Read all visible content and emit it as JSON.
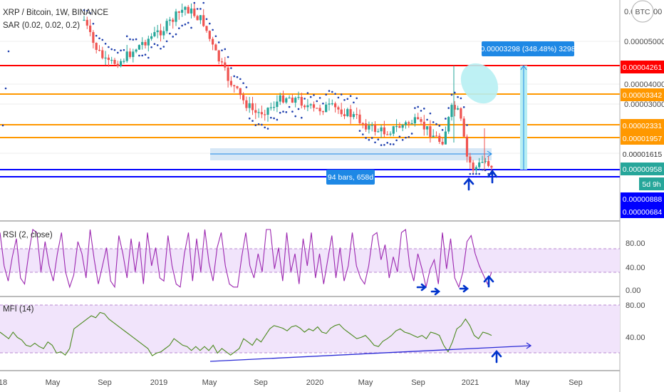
{
  "header": {
    "title": "XRP / Bitcoin, 1W, BINANCE",
    "indicator": "SAR (0.02, 0.02, 0.2)",
    "currency_button": "BTC"
  },
  "chart_data": [
    {
      "type": "candlestick",
      "title": "XRP / Bitcoin, 1W, BINANCE",
      "indicator": "SAR (0.02, 0.02, 0.2)",
      "ylim": [
        6.8e-06,
        6.5e-06
      ],
      "y_ticks": [
        "0.00005000",
        "0.00004000",
        "0.00003000",
        "0.00001615"
      ],
      "price_lines": [
        {
          "value": "0.00004261",
          "color": "#ff0000"
        },
        {
          "value": "0.00003342",
          "color": "#ff9800"
        },
        {
          "value": "0.00002331",
          "color": "#ff9800"
        },
        {
          "value": "0.00001957",
          "color": "#ff9800"
        },
        {
          "value": "0.00000958",
          "color": "#0000ff"
        }
      ],
      "price_tags": [
        {
          "text": "0.00004261",
          "color": "#ff0000"
        },
        {
          "text": "0.00003342",
          "color": "#ff9800"
        },
        {
          "text": "0.00002331",
          "color": "#ff9800"
        },
        {
          "text": "0.00001957",
          "color": "#ff9800"
        },
        {
          "text": "0.00001615",
          "color": "#ffffff"
        },
        {
          "text": "0.00000958",
          "color": "#26a69a"
        },
        {
          "text": "5d 9h",
          "color": "#26a69a"
        },
        {
          "text": "0.00000888",
          "color": "#0000ff"
        },
        {
          "text": "0.00000684",
          "color": "#0000ff"
        }
      ],
      "annotations": [
        {
          "text": "0.00003298 (348.48%) 3298"
        },
        {
          "text": "94 bars, 658d"
        }
      ]
    },
    {
      "type": "line",
      "title": "RSI (2, close)",
      "ylim": [
        0,
        100
      ],
      "y_ticks": [
        "80.00",
        "40.00",
        "0.00"
      ],
      "series": [
        {
          "name": "RSI (2, close)",
          "color": "#9c27b0",
          "values": [
            95,
            40,
            15,
            55,
            85,
            20,
            10,
            60,
            100,
            95,
            30,
            80,
            40,
            15,
            60,
            95,
            30,
            5,
            25,
            80,
            60,
            20,
            100,
            50,
            10,
            40,
            70,
            15,
            5,
            90,
            60,
            20,
            85,
            30,
            80,
            10,
            95,
            40,
            70,
            20,
            15,
            90,
            40,
            10,
            5,
            60,
            95,
            15,
            85,
            30,
            100,
            45,
            15,
            70,
            95,
            40,
            10,
            5,
            5,
            55,
            95,
            40,
            20,
            60,
            30,
            100,
            100,
            35,
            70,
            15,
            95,
            30,
            60,
            10,
            85,
            40,
            95,
            20,
            60,
            10,
            50,
            90,
            20,
            70,
            15,
            40,
            95,
            40,
            20,
            10,
            40,
            90,
            95,
            50,
            75,
            20,
            55,
            30,
            95,
            100,
            40,
            15,
            60,
            35,
            5,
            35,
            50,
            10,
            95,
            35,
            85,
            20,
            5,
            30,
            80,
            90,
            60,
            40,
            25,
            10,
            30
          ]
        }
      ]
    },
    {
      "type": "line",
      "title": "MFI (14)",
      "ylim": [
        0,
        100
      ],
      "y_ticks": [
        "80.00",
        "40.00"
      ],
      "series": [
        {
          "name": "MFI (14)",
          "color": "#4c8a1f",
          "values": [
            50,
            45,
            40,
            50,
            42,
            38,
            30,
            28,
            33,
            28,
            25,
            35,
            30,
            18,
            20,
            15,
            25,
            55,
            60,
            65,
            70,
            75,
            72,
            80,
            78,
            70,
            65,
            60,
            55,
            50,
            45,
            40,
            35,
            30,
            25,
            14,
            18,
            20,
            25,
            30,
            40,
            35,
            30,
            28,
            22,
            28,
            22,
            28,
            22,
            30,
            18,
            25,
            20,
            15,
            20,
            25,
            40,
            35,
            30,
            40,
            35,
            45,
            55,
            60,
            58,
            56,
            52,
            58,
            60,
            56,
            50,
            55,
            52,
            58,
            50,
            48,
            56,
            60,
            62,
            55,
            50,
            45,
            40,
            42,
            45,
            38,
            30,
            28,
            36,
            40,
            45,
            52,
            55,
            50,
            48,
            45,
            42,
            45,
            40,
            50,
            48,
            45,
            30,
            20,
            35,
            55,
            60,
            70,
            60,
            45,
            40,
            50,
            48,
            45
          ]
        }
      ]
    }
  ],
  "x_axis": {
    "labels": [
      "18",
      "May",
      "Sep",
      "2019",
      "May",
      "Sep",
      "2020",
      "May",
      "Sep",
      "2021",
      "May",
      "Sep"
    ]
  }
}
